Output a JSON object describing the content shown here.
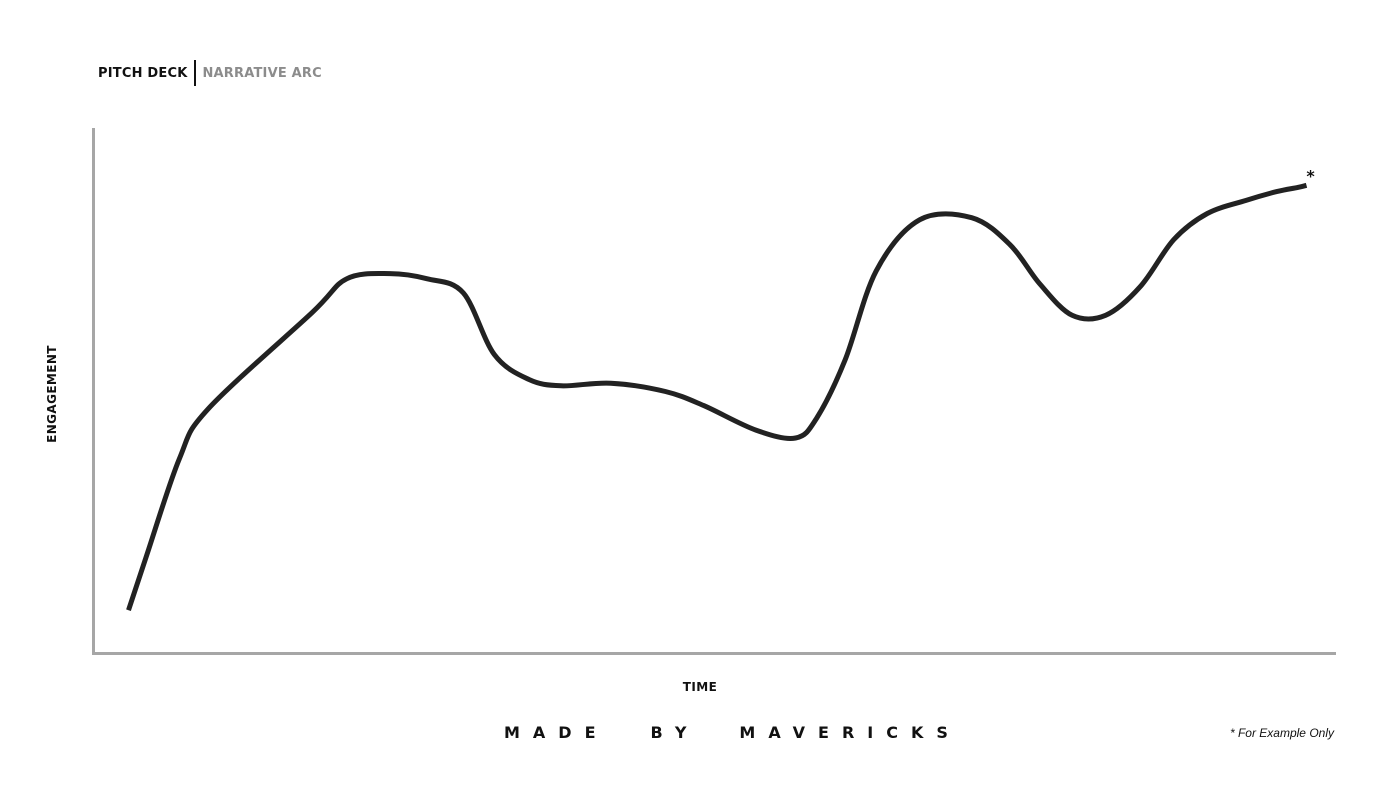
{
  "header": {
    "deck_label": "PITCH DECK",
    "section_label": "NARRATIVE ARC"
  },
  "chart_data": {
    "type": "line",
    "xlabel": "TIME",
    "ylabel": "ENGAGEMENT",
    "xlim": [
      0,
      100
    ],
    "ylim": [
      0,
      100
    ],
    "grid": false,
    "legend": "none",
    "line_color": "#222222",
    "axis_color": "#a6a6a6",
    "series": [
      {
        "x": [
          2.7,
          4.1,
          6.8,
          9.1,
          17.5,
          20.3,
          23.8,
          26.8,
          29.7,
          32.2,
          35.0,
          37.6,
          41.6,
          46.0,
          49.1,
          53.3,
          56.5,
          58.2,
          60.5,
          63.0,
          66.5,
          70.7,
          73.8,
          76.2,
          78.8,
          81.5,
          84.3,
          87.0,
          89.7,
          92.8,
          95.3,
          97.0,
          97.7
        ],
        "y": [
          8,
          18,
          37,
          46.5,
          65,
          71.5,
          72.5,
          71.5,
          68.8,
          57.0,
          52.2,
          51.0,
          51.5,
          49.9,
          47.2,
          42.5,
          41.0,
          44.8,
          56.0,
          73.0,
          82.8,
          83.2,
          78.0,
          70.5,
          64.5,
          64.5,
          70.0,
          79.0,
          84.0,
          86.5,
          88.2,
          89.0,
          89.4
        ]
      }
    ],
    "end_marker": "*"
  },
  "brand": {
    "word1": "MADE",
    "word2": "BY",
    "word3": "MAVERICKS"
  },
  "footnote": "* For Example Only"
}
